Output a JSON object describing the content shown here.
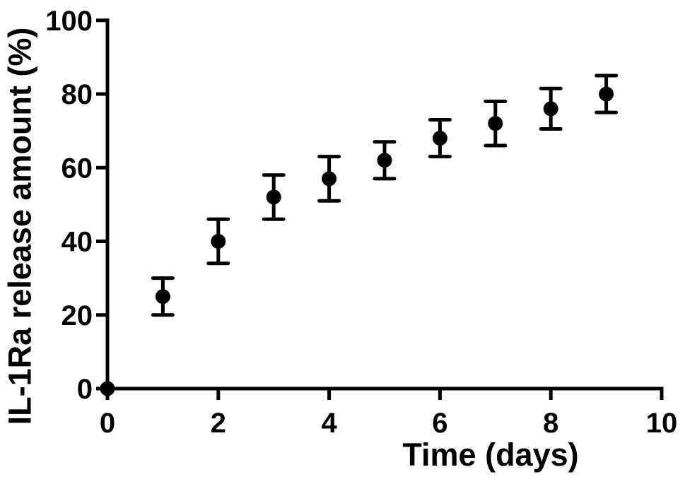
{
  "figure": {
    "background_color": "#ffffff",
    "ink_color": "#000000"
  },
  "chart_data": {
    "type": "scatter",
    "title": "",
    "xlabel": "Time (days)",
    "ylabel": "IL-1Ra release amount (%)",
    "x": [
      0,
      1,
      2,
      3,
      4,
      5,
      6,
      7,
      8,
      9
    ],
    "y": [
      0,
      25,
      40,
      52,
      57,
      62,
      68,
      72,
      76,
      80
    ],
    "y_error": [
      0,
      5,
      6,
      6,
      6,
      5,
      5,
      6,
      5.5,
      5
    ],
    "xlim": [
      0,
      10
    ],
    "ylim": [
      0,
      100
    ],
    "x_ticks": [
      0,
      2,
      4,
      6,
      8,
      10
    ],
    "y_ticks": [
      0,
      20,
      40,
      60,
      80,
      100
    ],
    "grid": false,
    "legend": "none",
    "marker": "filled-circle",
    "error_bars": "vertical-with-caps"
  }
}
